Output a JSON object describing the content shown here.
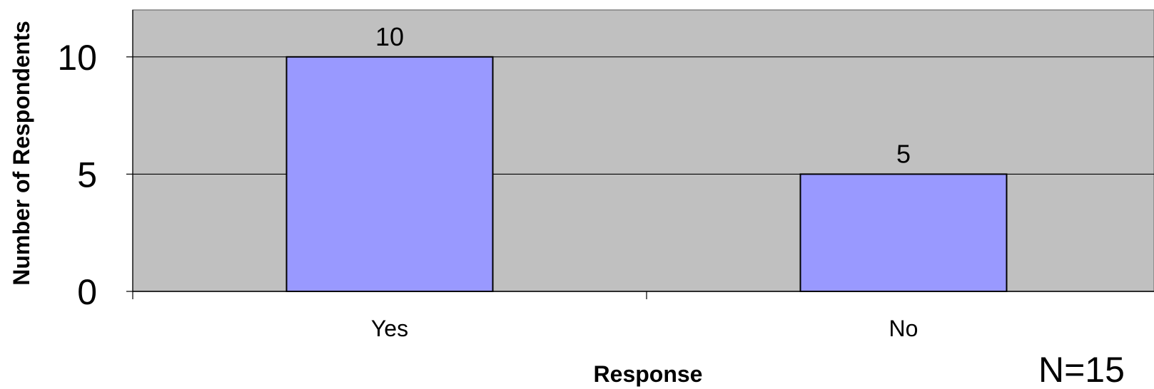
{
  "chart_data": {
    "type": "bar",
    "categories": [
      "Yes",
      "No"
    ],
    "values": [
      10,
      5
    ],
    "data_labels": [
      "10",
      "5"
    ],
    "title": "",
    "xlabel": "Response",
    "ylabel": "Number of Respondents",
    "ylim": [
      0,
      12
    ],
    "yticks": [
      0,
      5,
      10
    ],
    "ytick_labels": [
      "0",
      "5",
      "10"
    ],
    "grid": true,
    "legend": "none",
    "note": "N=15",
    "colors": {
      "bar_fill": "#9999FF",
      "plot_background": "#C0C0C0",
      "bar_edge": "#000000",
      "gridline": "#000000"
    }
  }
}
